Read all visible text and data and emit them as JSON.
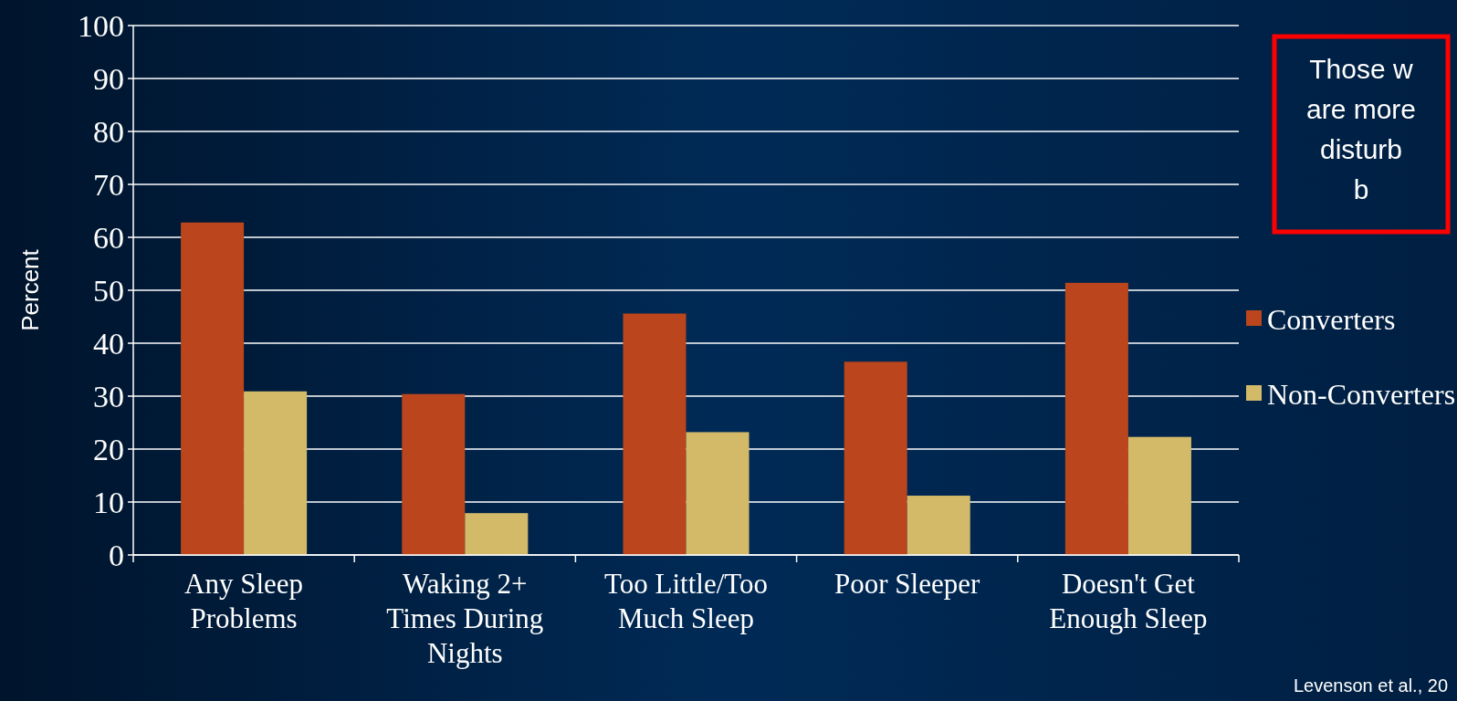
{
  "chart_data": {
    "type": "bar",
    "ylabel": "Percent",
    "categories": [
      "Any Sleep Problems",
      "Waking 2+ Times During Nights",
      "Too Little/Too Much Sleep",
      "Poor Sleeper",
      "Doesn't Get Enough Sleep"
    ],
    "series": [
      {
        "name": "Converters",
        "color": "#bb451c",
        "values": [
          62.8,
          30.4,
          45.6,
          36.5,
          51.4
        ]
      },
      {
        "name": "Non-Converters",
        "color": "#d3ba69",
        "values": [
          30.9,
          7.9,
          23.2,
          11.2,
          22.3
        ]
      }
    ],
    "ylim": [
      0,
      100
    ],
    "yticks": [
      0,
      10,
      20,
      30,
      40,
      50,
      60,
      70,
      80,
      90,
      100
    ],
    "grid": "y",
    "legend": "right",
    "annotations": [
      "Those w\nare more\ndisturb\nb",
      "Levenson et al., 20"
    ]
  }
}
